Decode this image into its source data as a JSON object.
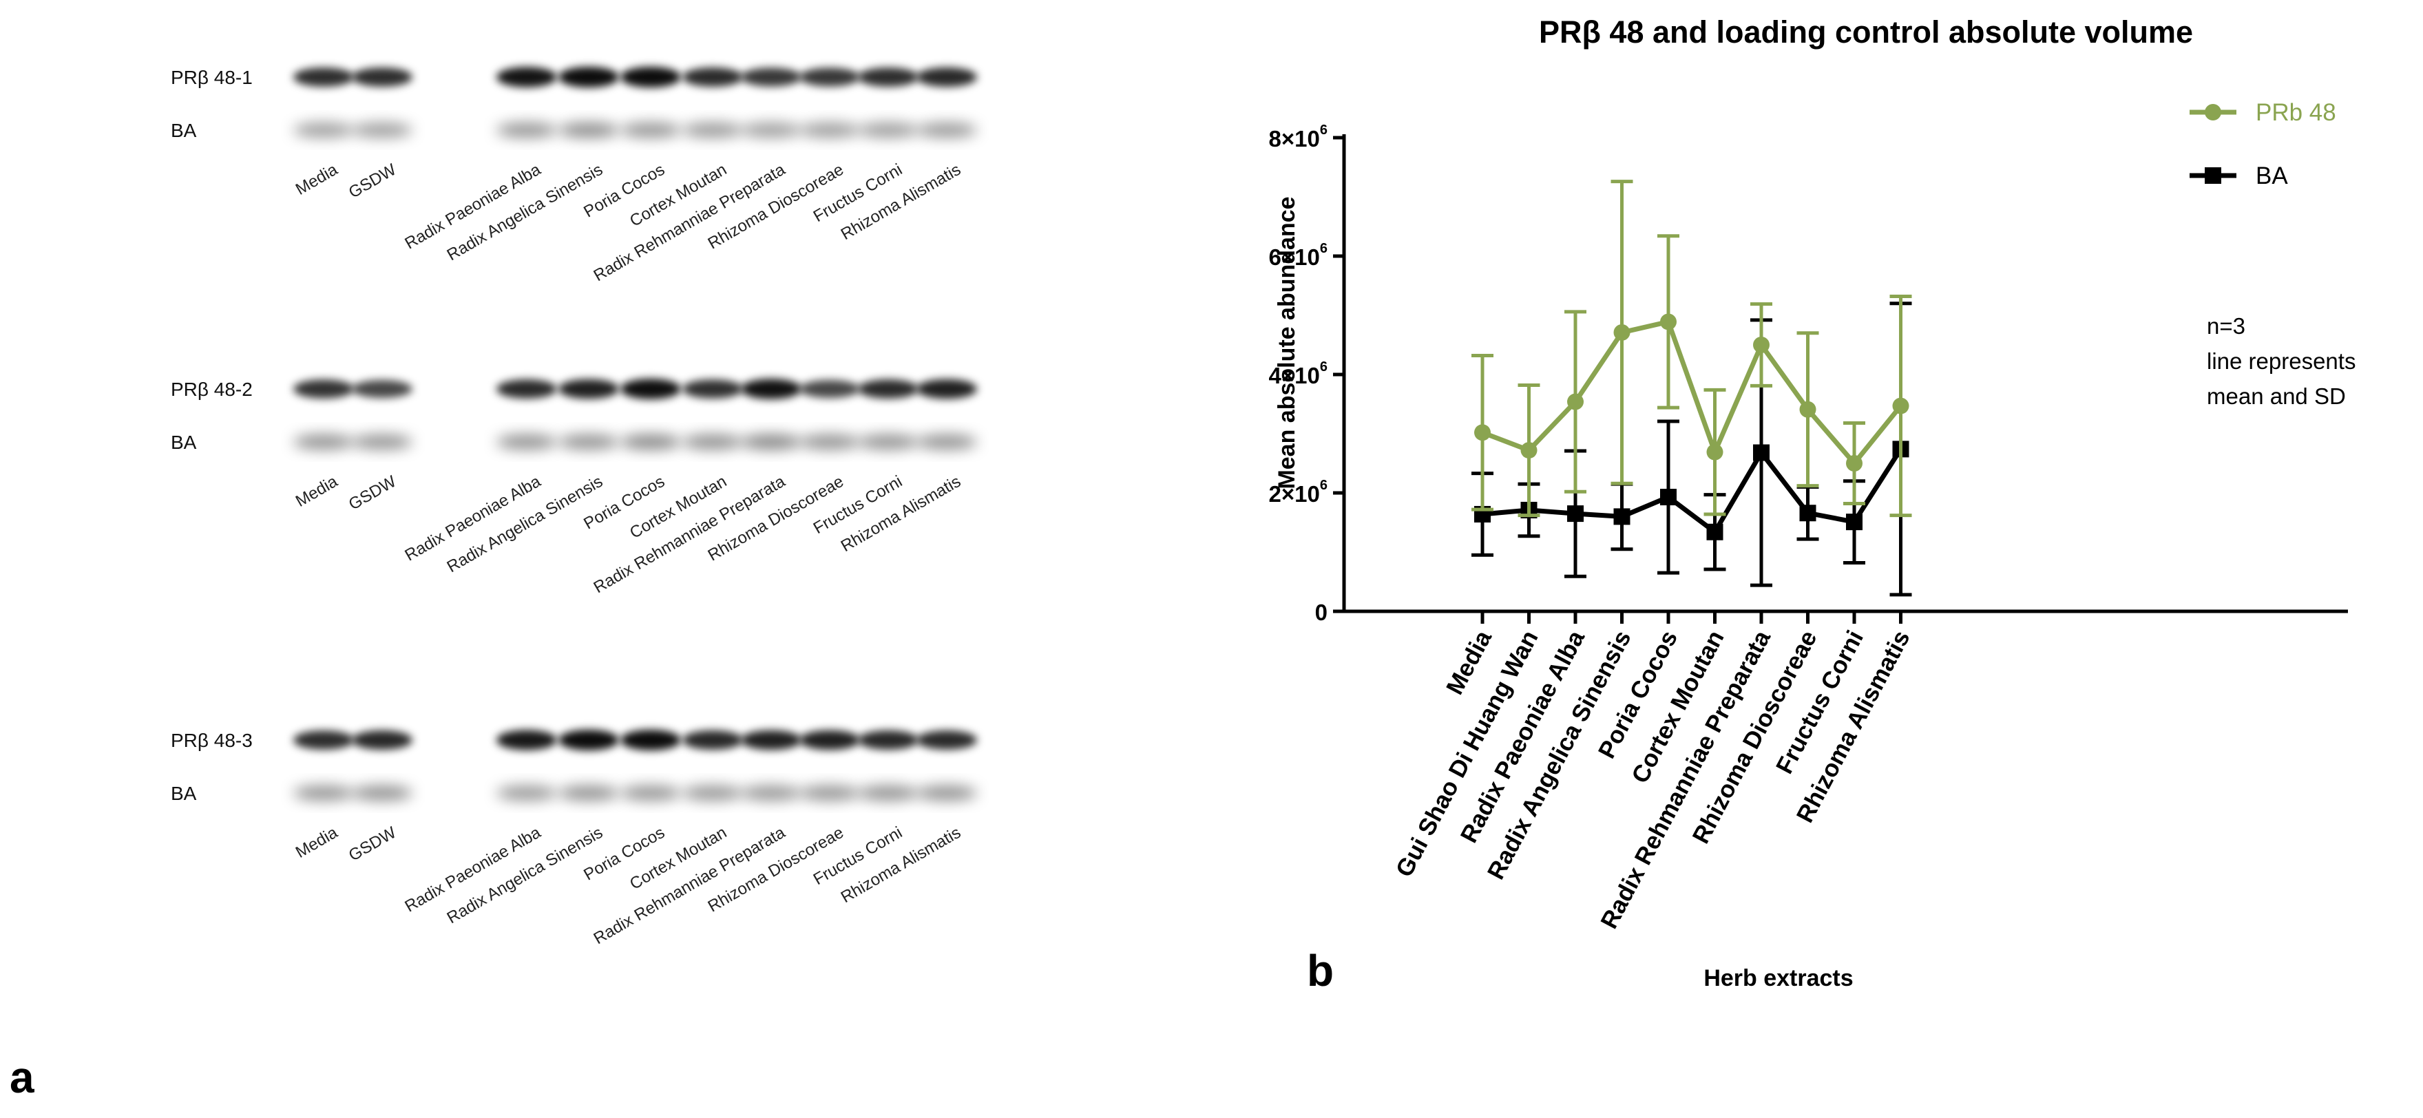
{
  "panel_a": {
    "label": "a",
    "blots": [
      {
        "target_label": "PRβ 48-1",
        "control_label": "BA",
        "lanes": [
          "Media",
          "GSDW",
          "Radix Paeoniae Alba",
          "Radix Angelica Sinensis",
          "Poria Cocos",
          "Cortex Moutan",
          "Radix Rehmanniae Preparata",
          "Rhizoma Dioscoreae",
          "Fructus Corni",
          "Rhizoma Alismatis"
        ]
      },
      {
        "target_label": "PRβ 48-2",
        "control_label": "BA",
        "lanes": [
          "Media",
          "GSDW",
          "Radix Paeoniae Alba",
          "Radix Angelica Sinensis",
          "Poria Cocos",
          "Cortex Moutan",
          "Radix Rehmanniae Preparata",
          "Rhizoma Dioscoreae",
          "Fructus Corni",
          "Rhizoma Alismatis"
        ]
      },
      {
        "target_label": "PRβ 48-3",
        "control_label": "BA",
        "lanes": [
          "Media",
          "GSDW",
          "Radix Paeoniae Alba",
          "Radix Angelica Sinensis",
          "Poria Cocos",
          "Cortex Moutan",
          "Radix Rehmanniae Preparata",
          "Rhizoma Dioscoreae",
          "Fructus Corni",
          "Rhizoma Alismatis"
        ]
      }
    ]
  },
  "panel_b": {
    "label": "b",
    "note_lines": [
      "n=3",
      "line represents",
      "mean and SD"
    ]
  },
  "colors": {
    "prb": "#8aa450",
    "ba": "#000000"
  },
  "chart_data": {
    "type": "line",
    "title": "PRβ 48 and loading control absolute volume",
    "xlabel": "Herb extracts",
    "ylabel": "Mean absolute abundance",
    "categories": [
      "Media",
      "Gui Shao Di Huang Wan",
      "Radix Paeoniae Alba",
      "Radix Angelica Sinensis",
      "Poria Cocos",
      "Cortex Moutan",
      "Radix Rehmanniae Preparata",
      "Rhizoma Dioscoreae",
      "Fructus Corni",
      "Rhizoma Alismatis"
    ],
    "ylim": [
      0,
      8000000
    ],
    "yticks": [
      0,
      2000000,
      4000000,
      6000000,
      8000000
    ],
    "ytick_labels": [
      {
        "base": "0",
        "exp": ""
      },
      {
        "base": "2×10",
        "exp": "6"
      },
      {
        "base": "4×10",
        "exp": "6"
      },
      {
        "base": "6×10",
        "exp": "6"
      },
      {
        "base": "8×10",
        "exp": "6"
      }
    ],
    "legend_position": "top-right",
    "series": [
      {
        "name": "PRb 48",
        "marker": "circle",
        "values": [
          3020000,
          2720000,
          3540000,
          4710000,
          4890000,
          2690000,
          4500000,
          3410000,
          2500000,
          3470000
        ],
        "sd": [
          1300000,
          1100000,
          1520000,
          2550000,
          1450000,
          1050000,
          690000,
          1290000,
          680000,
          1850000
        ]
      },
      {
        "name": "BA",
        "marker": "square",
        "values": [
          1640000,
          1710000,
          1650000,
          1600000,
          1930000,
          1340000,
          2680000,
          1660000,
          1510000,
          2740000
        ],
        "sd": [
          690000,
          440000,
          1060000,
          550000,
          1280000,
          630000,
          2240000,
          440000,
          690000,
          2460000
        ]
      }
    ]
  }
}
